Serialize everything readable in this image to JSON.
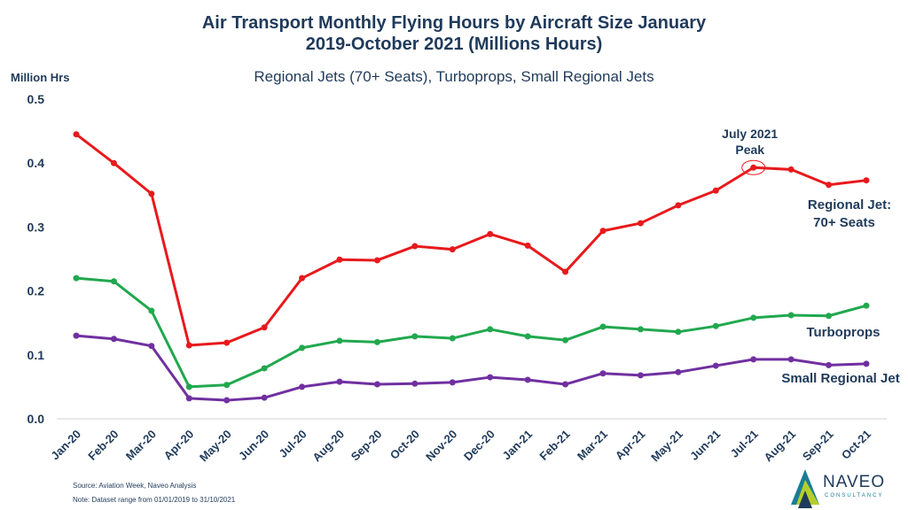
{
  "chart_data": {
    "type": "line",
    "title": "Air Transport Monthly Flying Hours by Aircraft Size January 2019-October 2021 (Millions Hours)",
    "title_line1": "Air Transport Monthly Flying Hours by Aircraft Size January",
    "title_line2": "2019-October 2021 (Millions Hours)",
    "subtitle": "Regional Jets (70+ Seats), Turboprops, Small Regional Jets",
    "ylabel": "Million Hrs",
    "ylim": [
      0,
      0.5
    ],
    "yticks": [
      "0.0",
      "0.1",
      "0.2",
      "0.3",
      "0.4",
      "0.5"
    ],
    "grid": false,
    "categories": [
      "Jan-20",
      "Feb-20",
      "Mar-20",
      "Apr-20",
      "May-20",
      "Jun-20",
      "Jul-20",
      "Aug-20",
      "Sep-20",
      "Oct-20",
      "Nov-20",
      "Dec-20",
      "Jan-21",
      "Feb-21",
      "Mar-21",
      "Apr-21",
      "May-21",
      "Jun-21",
      "Jul-21",
      "Aug-21",
      "Sep-21",
      "Oct-21"
    ],
    "series": [
      {
        "name": "Regional Jet: 70+ Seats",
        "label_line1": "Regional Jet:",
        "label_line2": "70+ Seats",
        "color": "#e8191c",
        "values": [
          0.445,
          0.4,
          0.352,
          0.115,
          0.119,
          0.143,
          0.22,
          0.249,
          0.248,
          0.27,
          0.265,
          0.289,
          0.271,
          0.23,
          0.294,
          0.306,
          0.334,
          0.357,
          0.393,
          0.39,
          0.366,
          0.373
        ]
      },
      {
        "name": "Turboprops",
        "color": "#21a84e",
        "values": [
          0.22,
          0.215,
          0.169,
          0.05,
          0.053,
          0.079,
          0.111,
          0.122,
          0.12,
          0.129,
          0.126,
          0.14,
          0.129,
          0.123,
          0.144,
          0.14,
          0.136,
          0.145,
          0.158,
          0.162,
          0.161,
          0.177
        ]
      },
      {
        "name": "Small Regional Jet",
        "color": "#7030a0",
        "values": [
          0.13,
          0.125,
          0.114,
          0.032,
          0.029,
          0.033,
          0.05,
          0.058,
          0.054,
          0.055,
          0.057,
          0.065,
          0.061,
          0.054,
          0.071,
          0.068,
          0.073,
          0.083,
          0.093,
          0.093,
          0.084,
          0.086
        ]
      }
    ],
    "annotation": {
      "line1": "July 2021",
      "line2": "Peak",
      "category": "Jul-21"
    }
  },
  "footer": {
    "source": "Source: Aviation Week, Naveo Analysis",
    "note": "Note: Dataset range from 01/01/2019 to 31/10/2021"
  },
  "logo": {
    "name": "NAVEO",
    "tagline": "CONSULTANCY"
  },
  "colors": {
    "title": "#1f3a5a"
  }
}
